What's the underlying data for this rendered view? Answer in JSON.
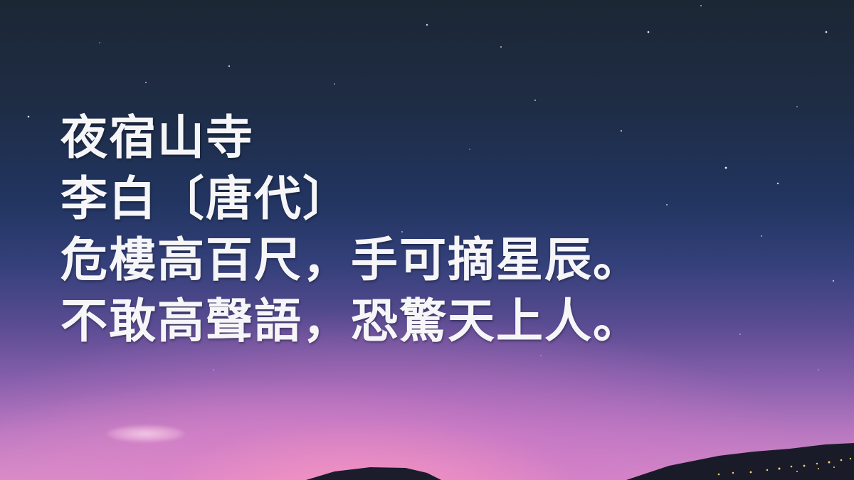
{
  "poem": {
    "title": "夜宿山寺",
    "author_line": "李白〔唐代〕",
    "verse_1": "危樓高百尺，手可摘星辰。",
    "verse_2": "不敢高聲語，恐驚天上人。"
  },
  "colors": {
    "sky_top": "#1c2735",
    "sky_mid": "#223561",
    "sky_horizon": "#d68cc7",
    "text": "#f6f6f8",
    "mountain": "#1a1d2a",
    "town_lights": "#ffcf70"
  }
}
